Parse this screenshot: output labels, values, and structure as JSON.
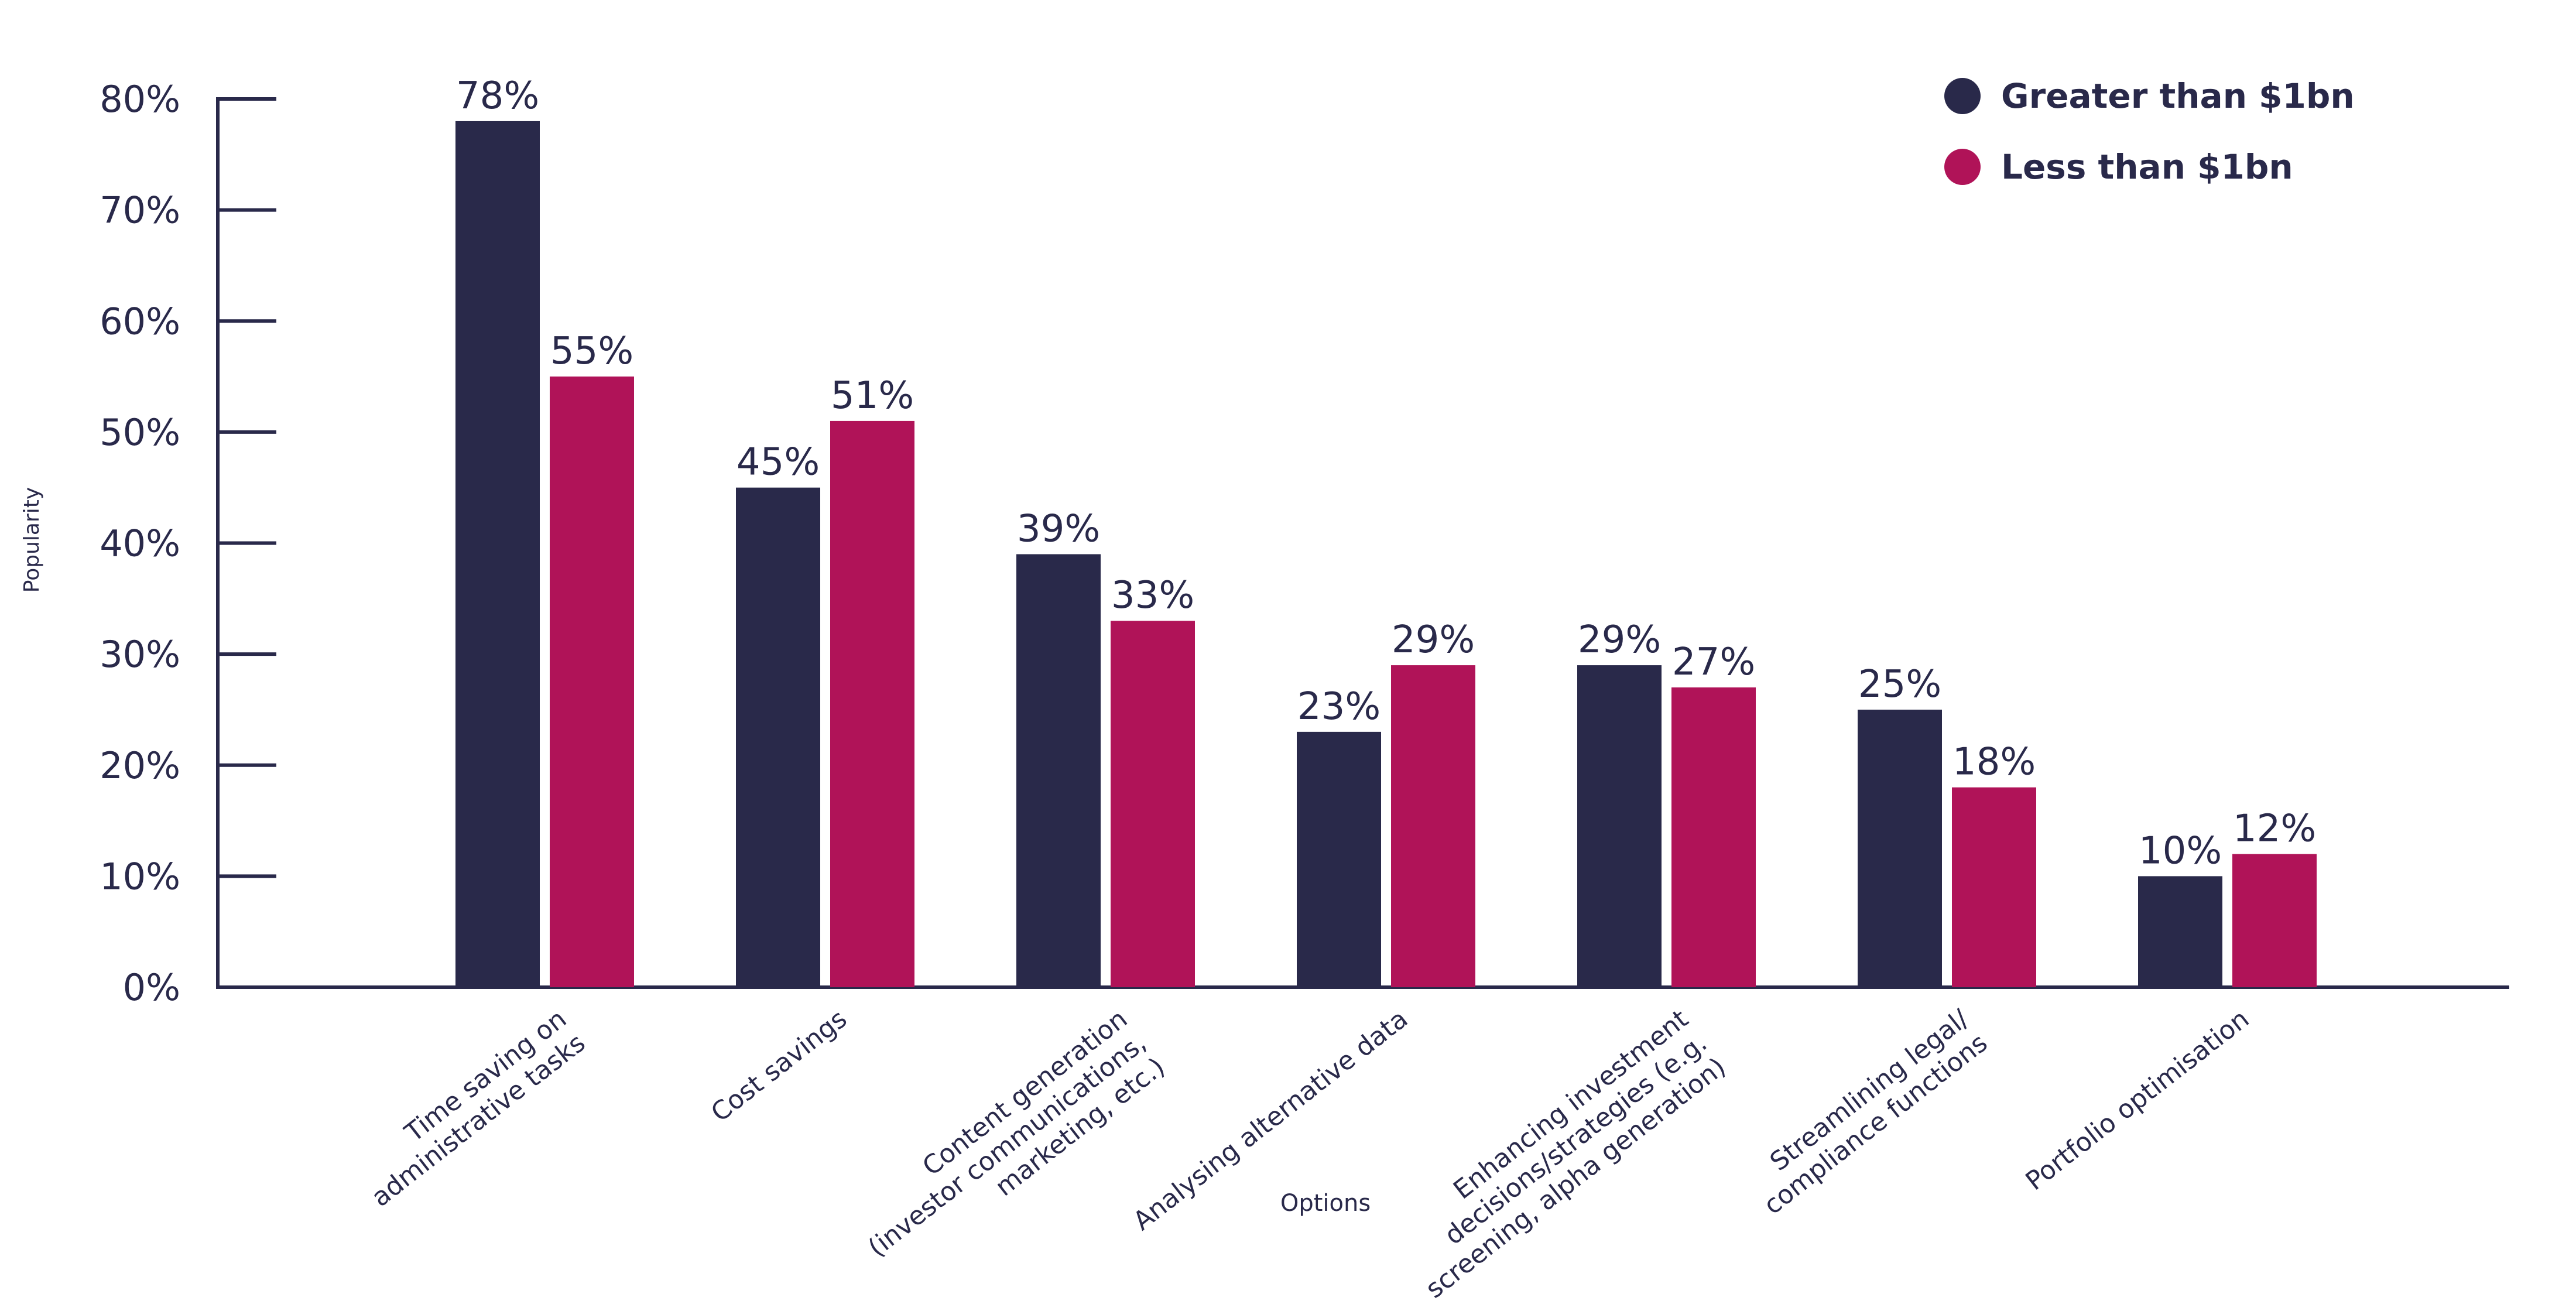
{
  "chart_data": {
    "type": "bar",
    "title": "",
    "xlabel": "Options",
    "ylabel": "Popularity",
    "ylim": [
      0,
      80
    ],
    "yticks": [
      "0%",
      "10%",
      "20%",
      "30%",
      "40%",
      "50%",
      "60%",
      "70%",
      "80%"
    ],
    "grid": false,
    "legend_position": "top-right",
    "categories": [
      [
        "Time saving on",
        "administrative tasks"
      ],
      [
        "Cost savings"
      ],
      [
        "Content generation",
        "(investor communications,",
        "marketing, etc.)"
      ],
      [
        "Analysing alternative data"
      ],
      [
        "Enhancing investment",
        "decisions/strategies (e.g.",
        "screening, alpha generation)"
      ],
      [
        "Streamlining legal/",
        "compliance functions"
      ],
      [
        "Portfolio optimisation"
      ]
    ],
    "series": [
      {
        "name": "Greater than $1bn",
        "color": "#29294a",
        "values": [
          78,
          45,
          39,
          23,
          29,
          25,
          10
        ]
      },
      {
        "name": "Less than $1bn",
        "color": "#b01358",
        "values": [
          55,
          51,
          33,
          29,
          27,
          18,
          12
        ]
      }
    ],
    "value_label_suffix": "%"
  }
}
